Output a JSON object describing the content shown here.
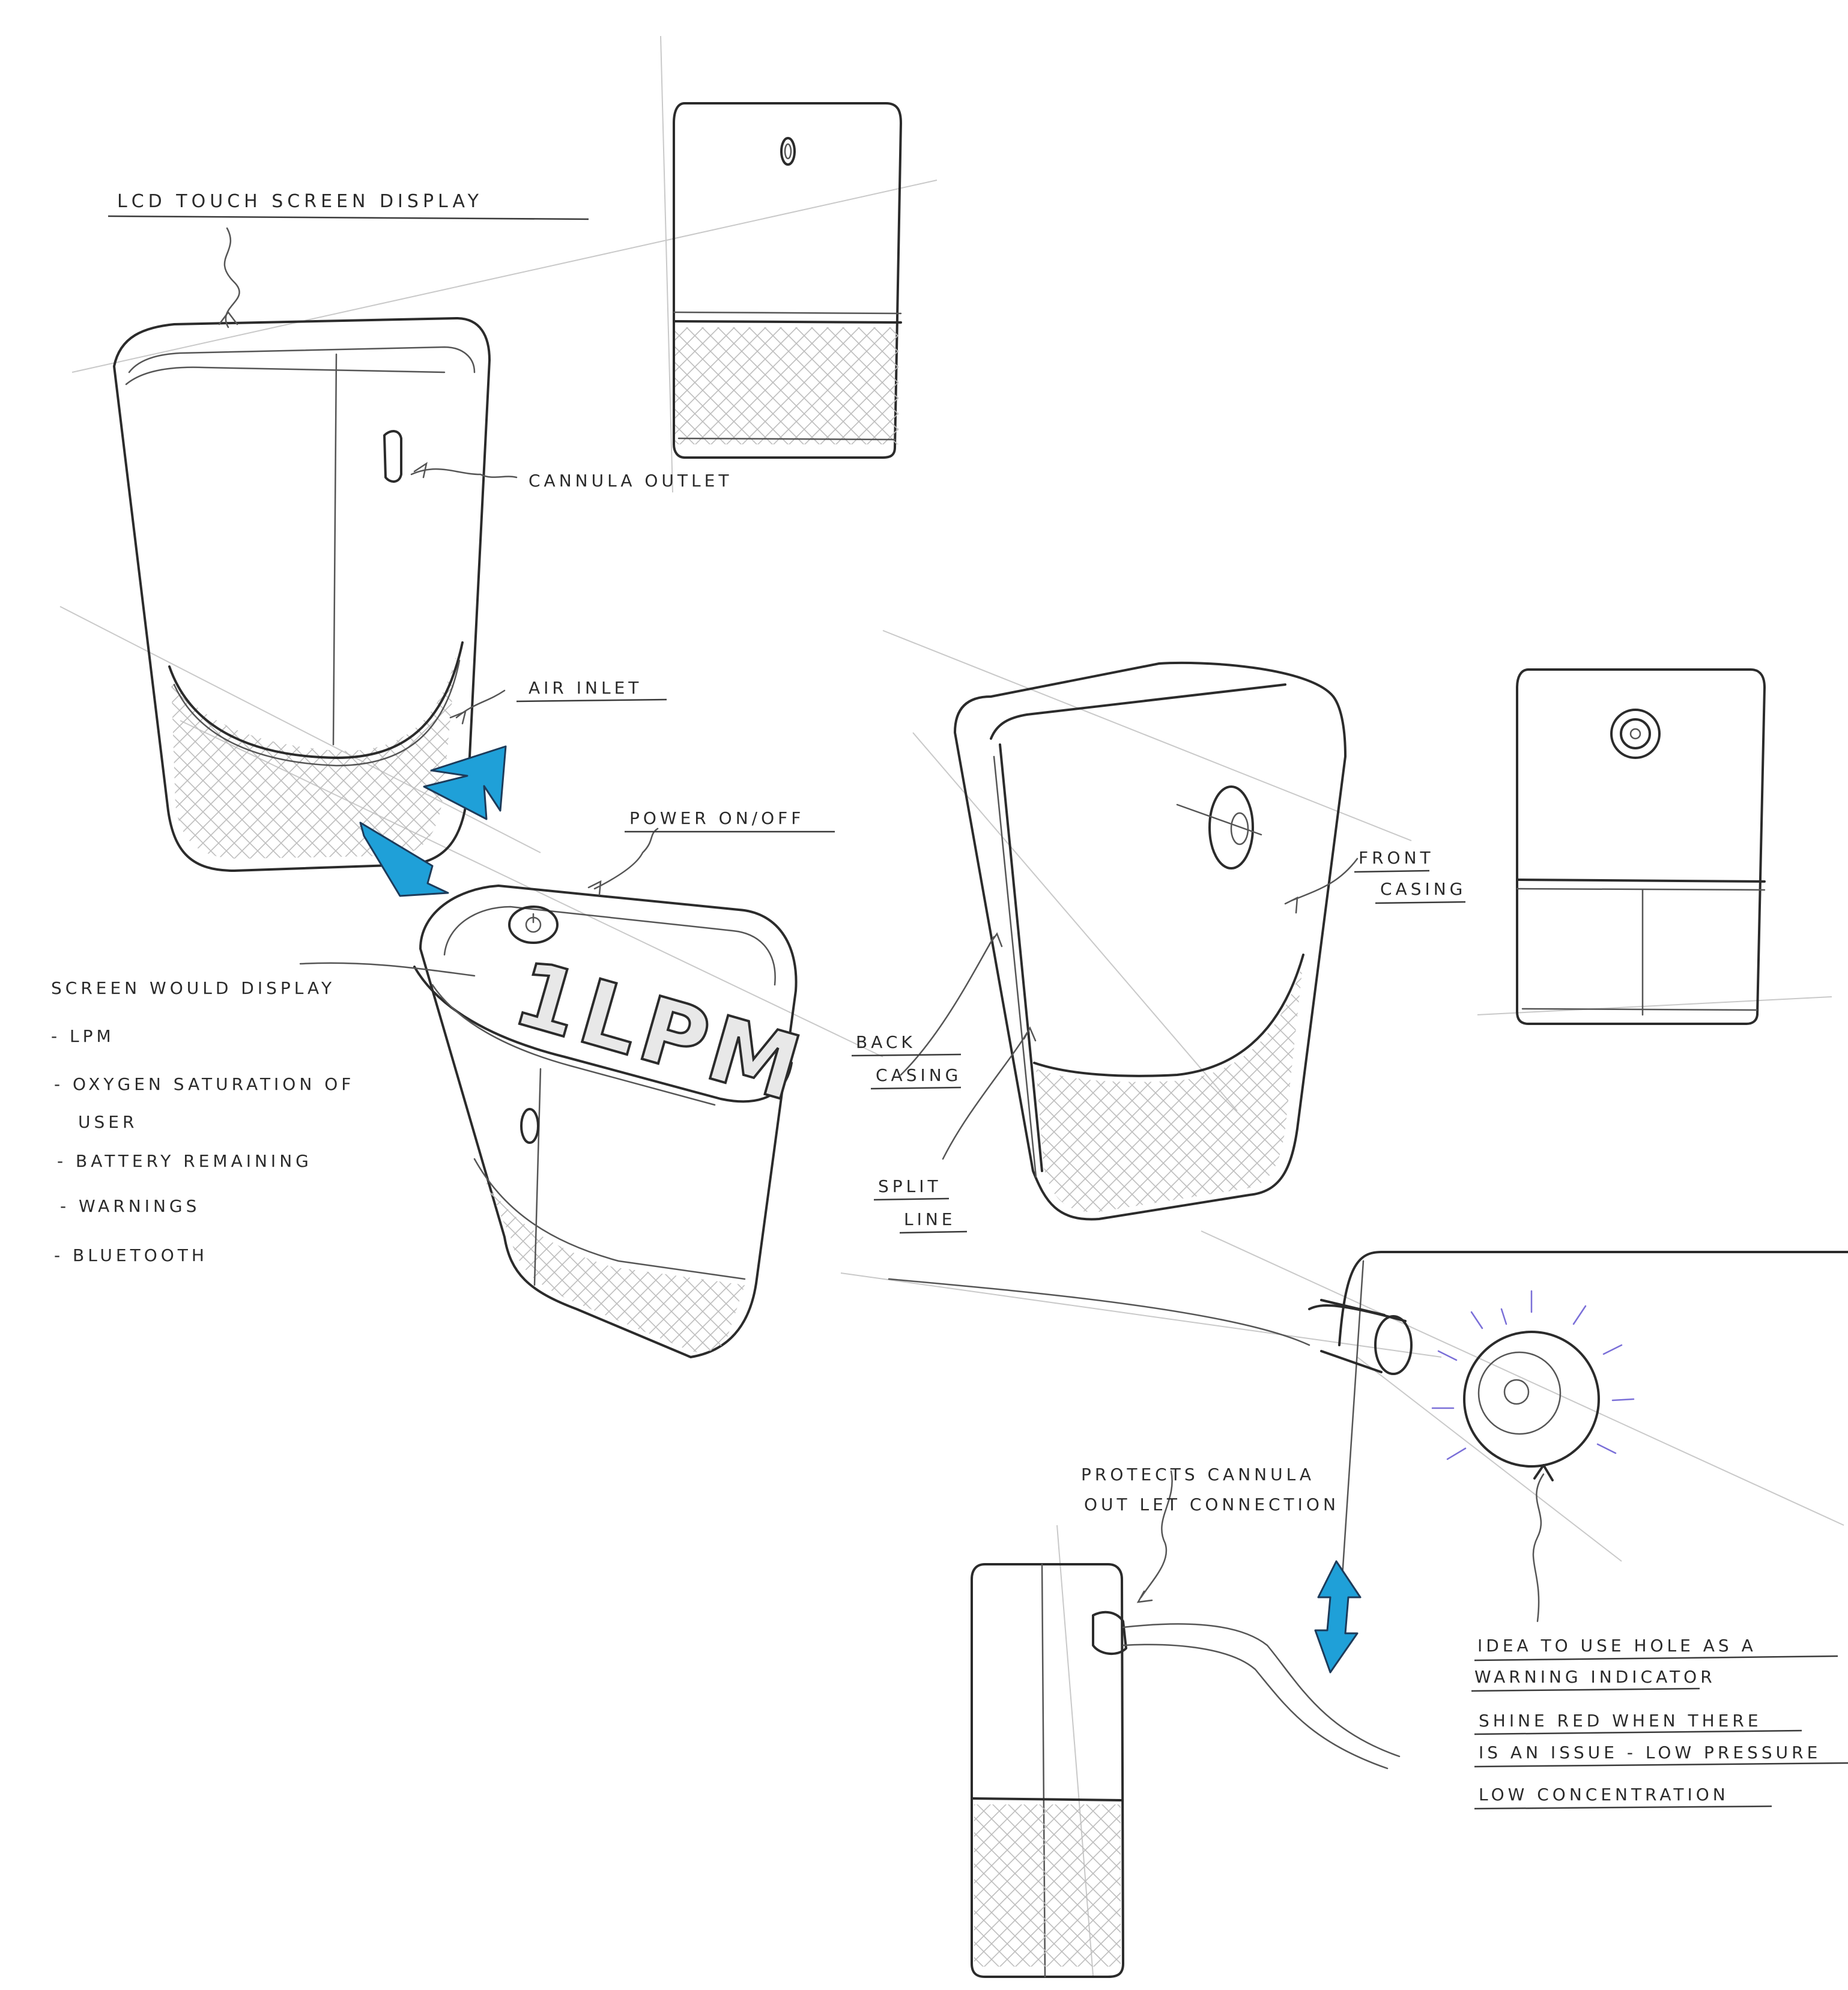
{
  "colors": {
    "ink": "#2b2b2b",
    "construction": "#c9c9c9",
    "arrow_blue": "#1fa0d8",
    "glow_violet": "#7a6fd8",
    "paper": "#ffffff"
  },
  "labels": {
    "lcd": "LCD TOUCH SCREEN DISPLAY",
    "cannula_outlet": "CANNULA OUTLET",
    "air_inlet": "AIR INLET",
    "power": "POWER ON/OFF",
    "front_casing_1": "FRONT",
    "front_casing_2": "CASING",
    "back_casing_1": "BACK",
    "back_casing_2": "CASING",
    "split_line_1": "SPLIT",
    "split_line_2": "LINE",
    "protects_1": "PROTECTS CANNULA",
    "protects_2": "OUT LET CONNECTION"
  },
  "screen": {
    "readout": "1LPM"
  },
  "screen_list": {
    "title": "SCREEN WOULD DISPLAY",
    "items": [
      "- LPM",
      "- OXYGEN SATURATION OF",
      "USER",
      "- BATTERY REMAINING",
      "- WARNINGS",
      "- BLUETOOTH"
    ]
  },
  "idea_note": {
    "lines": [
      "IDEA TO USE HOLE AS A",
      "WARNING INDICATOR",
      "SHINE RED WHEN THERE",
      "IS AN ISSUE - LOW PRESSURE",
      "LOW CONCENTRATION"
    ]
  },
  "icons": [
    "blue-arrow-icon",
    "power-button-icon",
    "double-arrow-icon",
    "warning-glow-icon"
  ]
}
